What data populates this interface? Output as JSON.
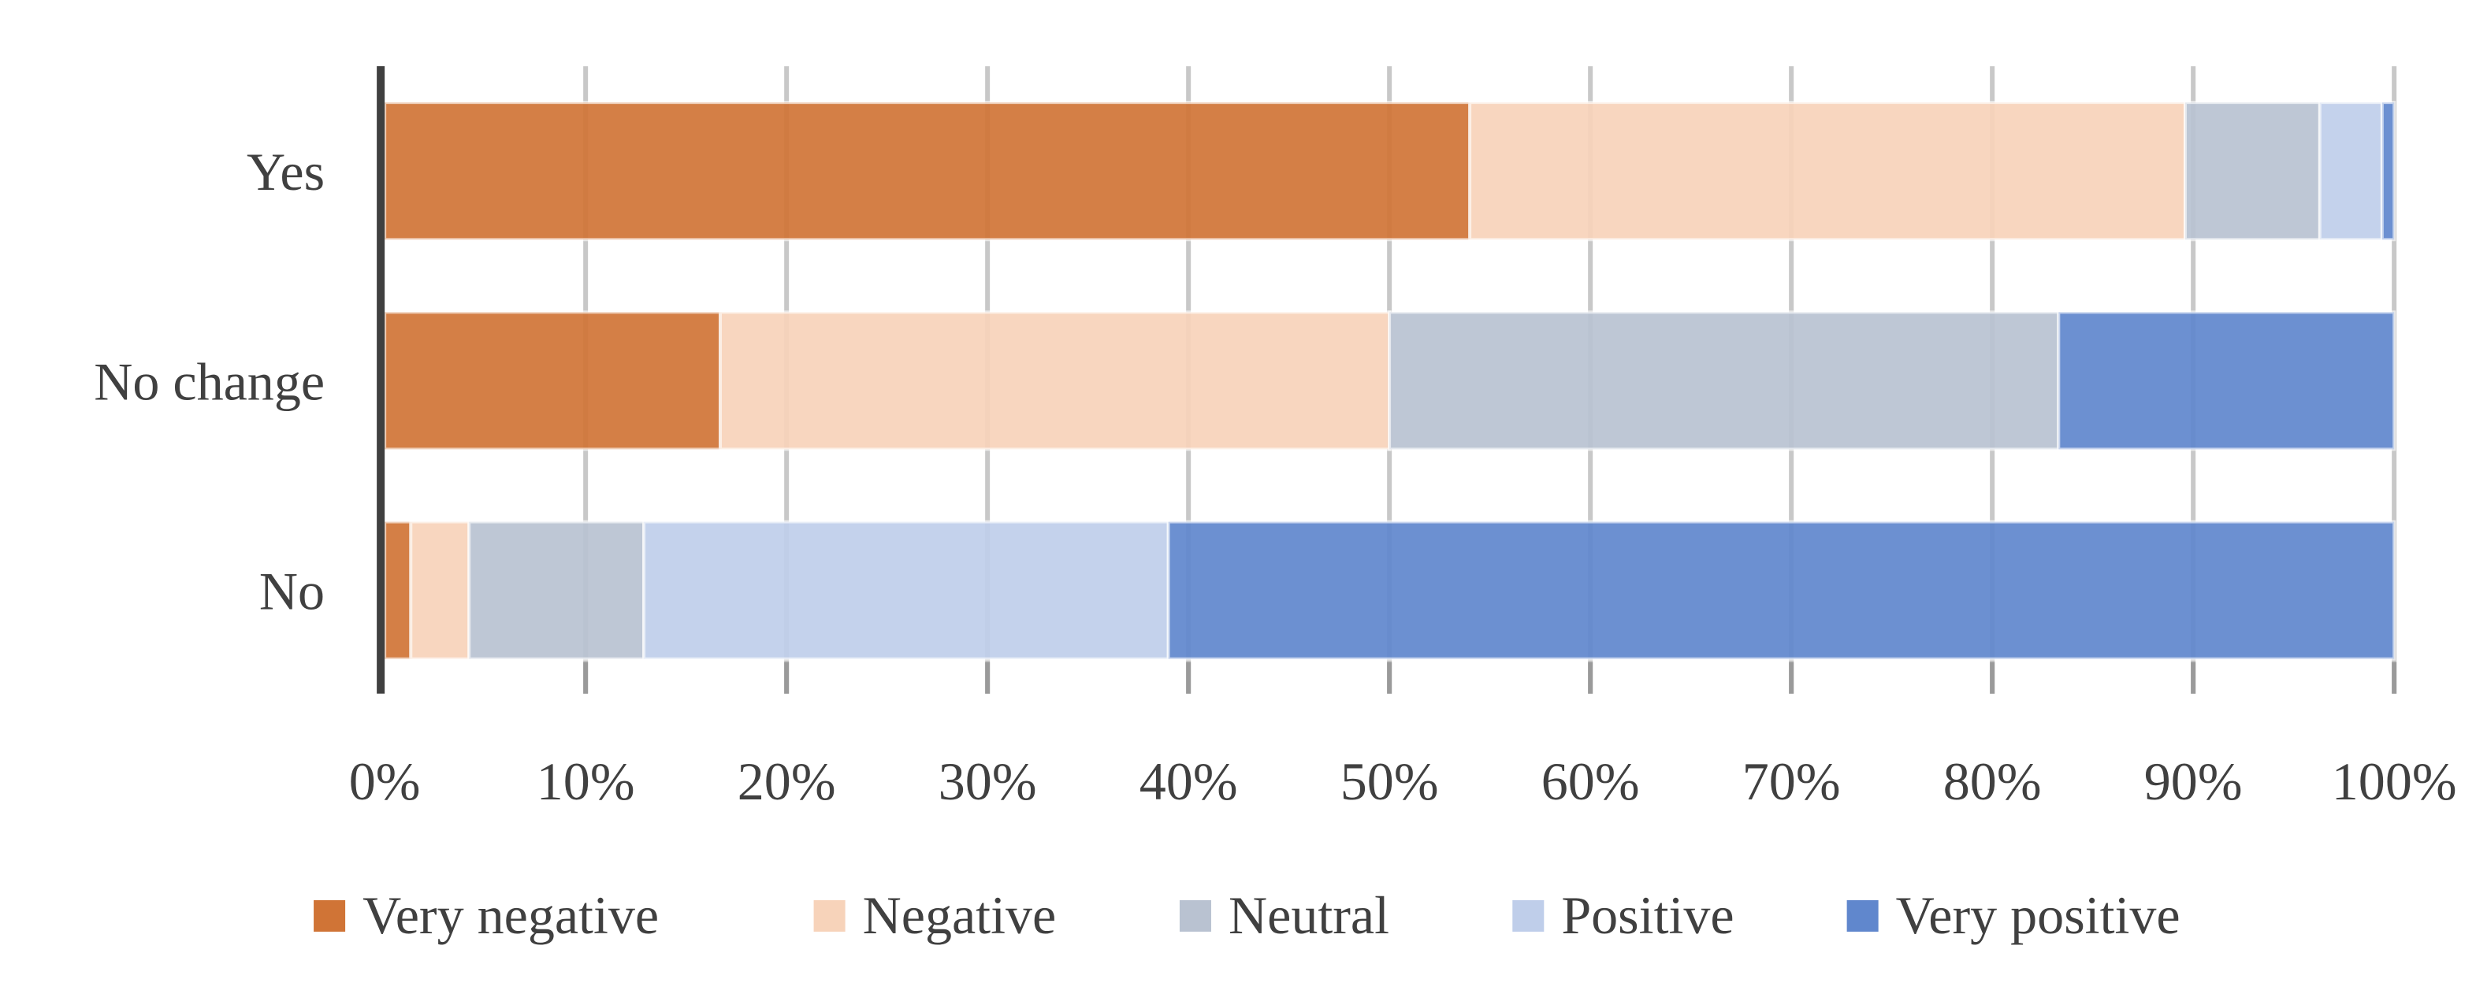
{
  "chart_data": {
    "type": "bar",
    "orientation": "horizontal",
    "stacked": "percent",
    "categories": [
      "Yes",
      "No change",
      "No"
    ],
    "series": [
      {
        "name": "Very negative",
        "color": "#D07436",
        "values": [
          54.0,
          16.7,
          1.3
        ]
      },
      {
        "name": "Negative",
        "color": "#F7D3BA",
        "values": [
          35.6,
          33.3,
          2.9
        ]
      },
      {
        "name": "Neutral",
        "color": "#B9C2D1",
        "values": [
          6.7,
          33.3,
          8.7
        ]
      },
      {
        "name": "Positive",
        "color": "#BFCEEA",
        "values": [
          3.1,
          0,
          26.1
        ]
      },
      {
        "name": "Very positive",
        "color": "#6087CD",
        "values": [
          0.6,
          16.7,
          61.0
        ]
      }
    ],
    "xlim": [
      0,
      100
    ],
    "x_ticks": [
      "0%",
      "10%",
      "20%",
      "30%",
      "40%",
      "50%",
      "60%",
      "70%",
      "80%",
      "90%",
      "100%"
    ],
    "grid": true,
    "legend_position": "bottom",
    "title": "",
    "xlabel": "",
    "ylabel": ""
  }
}
